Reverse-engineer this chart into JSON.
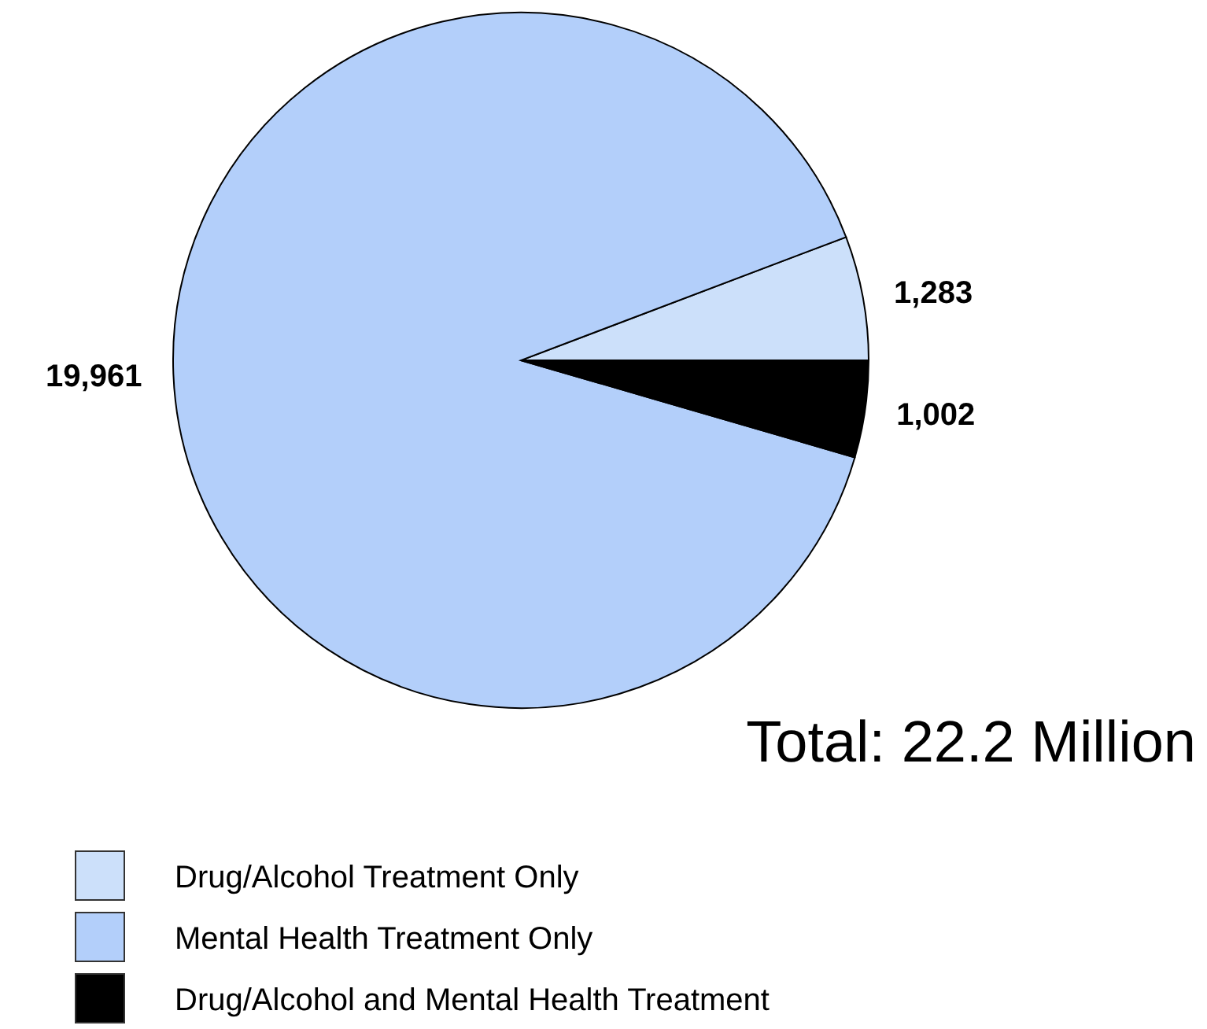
{
  "chart_data": {
    "type": "pie",
    "categories": [
      "Drug/Alcohol Treatment Only",
      "Mental Health Treatment Only",
      "Drug/Alcohol and Mental Health Treatment"
    ],
    "values": [
      1283,
      19961,
      1002
    ],
    "colors": [
      "#cce0fa",
      "#b3cffa",
      "#000000"
    ],
    "value_labels": [
      "1,283",
      "19,961",
      "1,002"
    ],
    "annotations": [
      "Total: 22.2 Million"
    ],
    "legend": "bottom left"
  }
}
